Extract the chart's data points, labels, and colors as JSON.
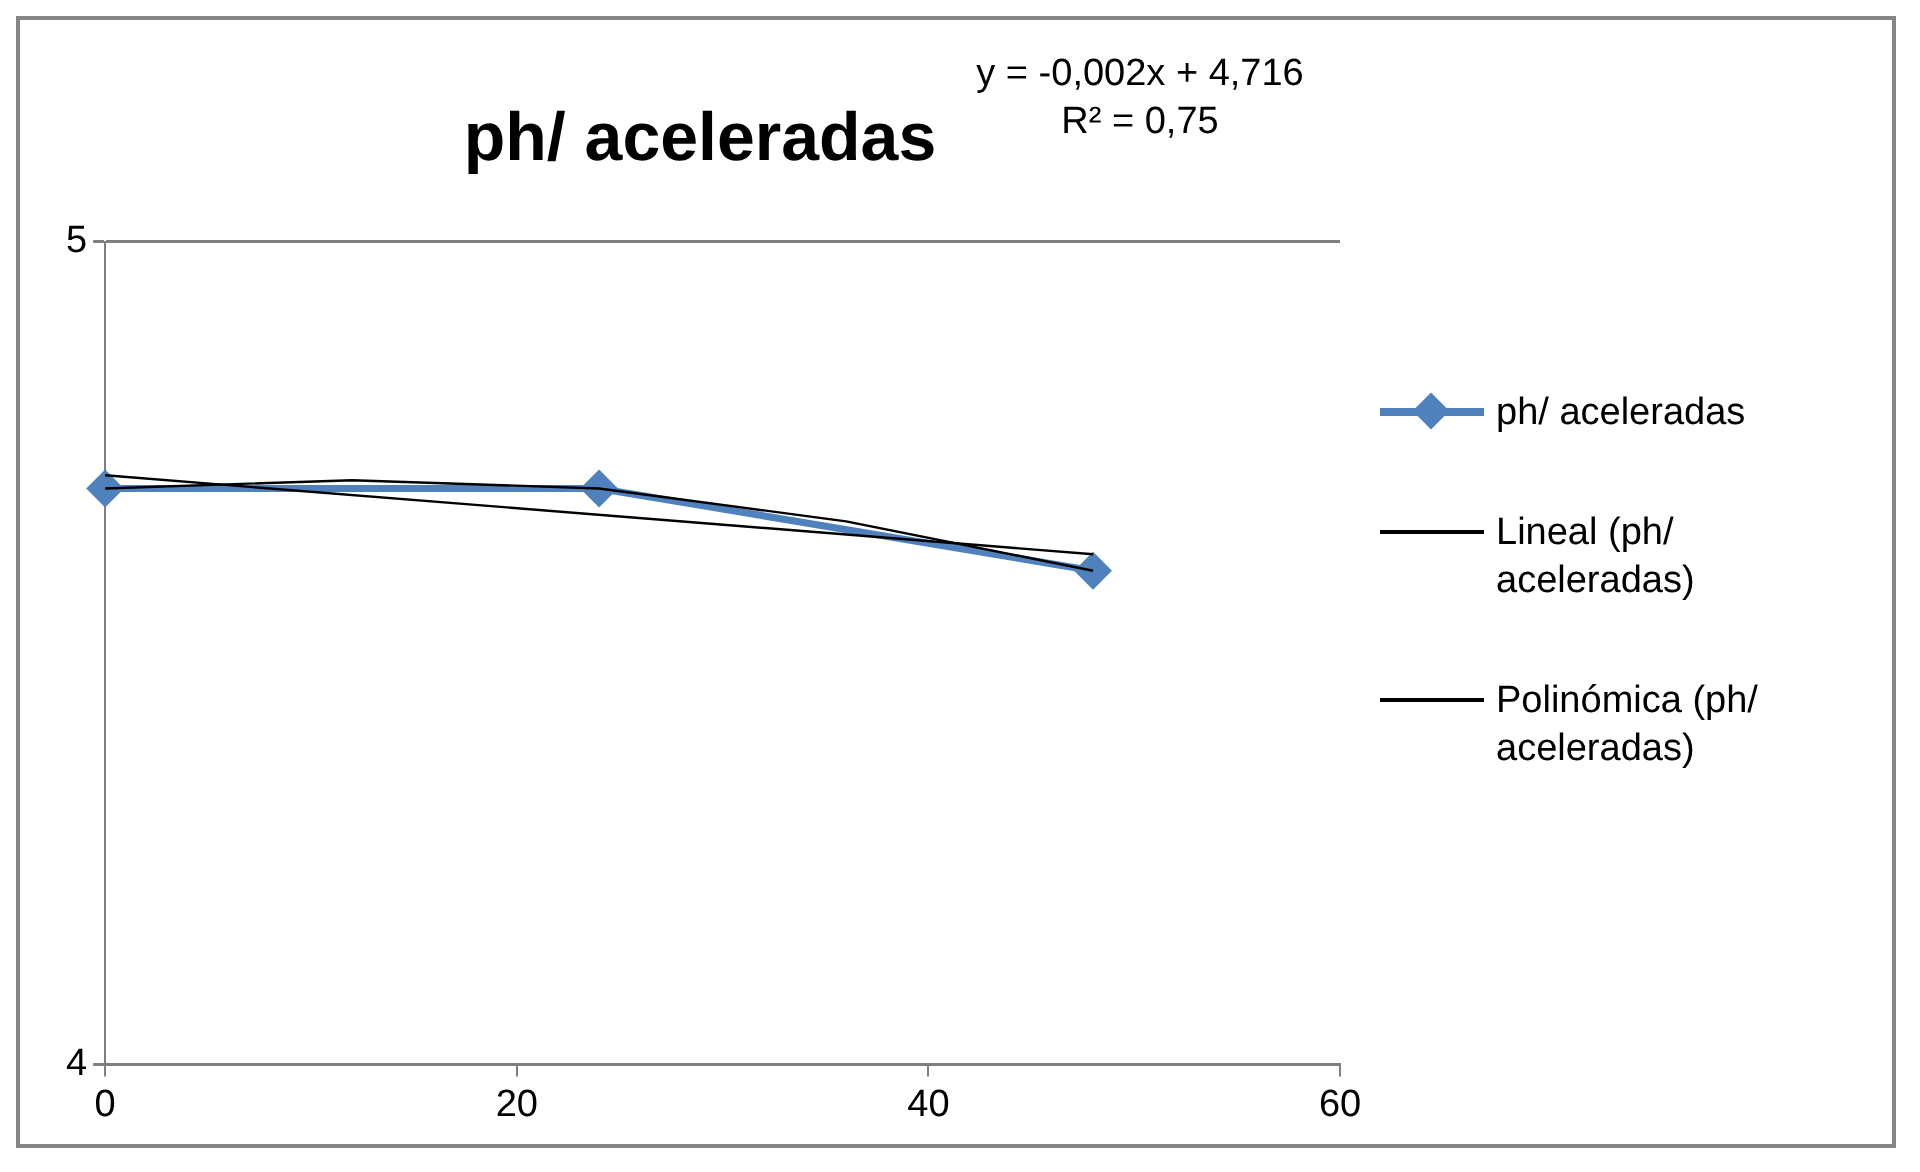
{
  "chart_data": {
    "type": "line",
    "title": "ph/ aceleradas",
    "annotations": [
      "y = -0,002x + 4,716",
      "R² = 0,75"
    ],
    "x": [
      0,
      24,
      48
    ],
    "series": [
      {
        "name": "ph/ aceleradas",
        "color": "#4f81bd",
        "values": [
          4.7,
          4.7,
          4.6
        ],
        "marker": "diamond"
      },
      {
        "name": "Lineal (ph/ aceleradas)",
        "color": "#000000",
        "type": "line",
        "x": [
          0,
          48
        ],
        "values": [
          4.716,
          4.62
        ],
        "marker": "none"
      },
      {
        "name": "Polinómica (ph/ aceleradas)",
        "color": "#000000",
        "type": "line",
        "x": [
          0,
          12,
          24,
          36,
          48
        ],
        "values": [
          4.7,
          4.71,
          4.7,
          4.66,
          4.6
        ],
        "marker": "none"
      }
    ],
    "xlim": [
      0,
      60
    ],
    "xticks": [
      0,
      20,
      40,
      60
    ],
    "ylim": [
      4,
      5
    ],
    "yticks": [
      4,
      5
    ],
    "grid": "y",
    "legend": "right"
  }
}
